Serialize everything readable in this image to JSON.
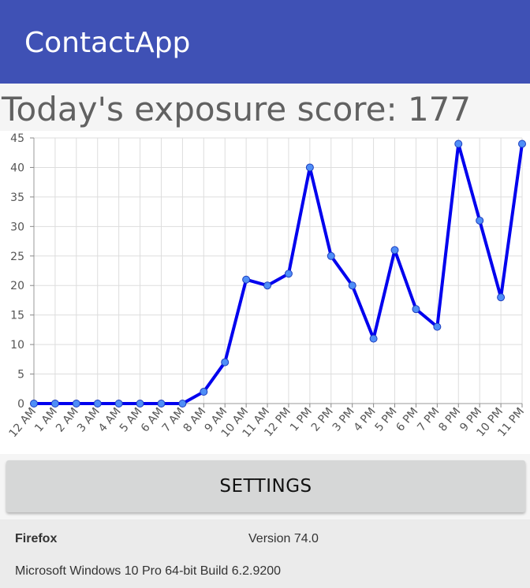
{
  "app_bar": {
    "title": "ContactApp",
    "color": "#3f51b5"
  },
  "score": {
    "text": "Today's exposure score: 177"
  },
  "chart_data": {
    "type": "line",
    "categories": [
      "12 AM",
      "1 AM",
      "2 AM",
      "3 AM",
      "4 AM",
      "5 AM",
      "6 AM",
      "7 AM",
      "8 AM",
      "9 AM",
      "10 AM",
      "11 AM",
      "12 PM",
      "1 PM",
      "2 PM",
      "3 PM",
      "4 PM",
      "5 PM",
      "6 PM",
      "7 PM",
      "8 PM",
      "9 PM",
      "10 PM",
      "11 PM"
    ],
    "values": [
      0,
      0,
      0,
      0,
      0,
      0,
      0,
      0,
      2,
      7,
      21,
      20,
      22,
      40,
      25,
      20,
      11,
      26,
      16,
      13,
      44,
      31,
      18,
      44
    ],
    "y_ticks": [
      "0",
      "5",
      "10",
      "15",
      "20",
      "25",
      "30",
      "35",
      "40",
      "45"
    ],
    "ylim": [
      0,
      45
    ],
    "grid": true,
    "line_color": "#0000ee",
    "marker_color": "#4f8ef7"
  },
  "settings": {
    "label": "SETTINGS"
  },
  "footer": {
    "browser": "Firefox",
    "version": "Version 74.0",
    "os": "Microsoft Windows 10 Pro 64-bit Build 6.2.9200"
  }
}
